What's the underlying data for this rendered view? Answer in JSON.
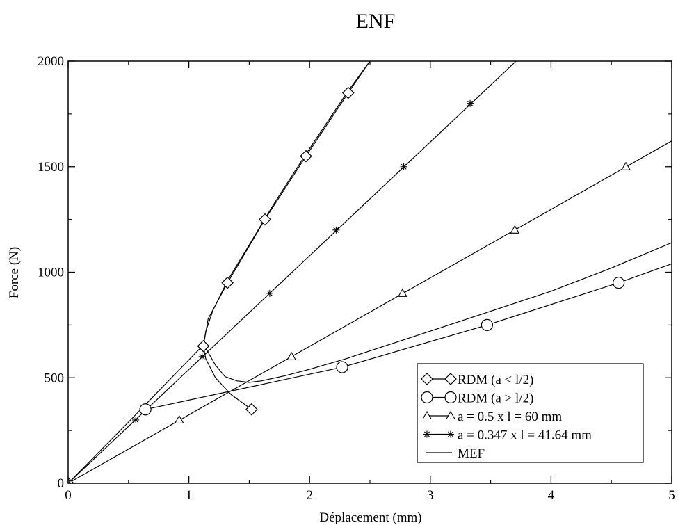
{
  "chart_data": {
    "type": "line",
    "title": "ENF",
    "xlabel": "Déplacement (mm)",
    "ylabel": "Force (N)",
    "xlim": [
      0,
      5
    ],
    "ylim": [
      0,
      2000
    ],
    "xticks": [
      "0",
      "1",
      "2",
      "3",
      "4",
      "5"
    ],
    "yticks": [
      "0",
      "500",
      "1000",
      "1500",
      "2000"
    ],
    "grid": false,
    "legend_position": "bottom-right",
    "series": [
      {
        "name": "RDM (a < l/2)",
        "marker": "diamond",
        "x": [
          0,
          1.12,
          1.32,
          1.63,
          1.97,
          2.32,
          1.52
        ],
        "y": [
          0,
          650,
          950,
          1250,
          1550,
          1850,
          350
        ],
        "x_line": [
          1.52,
          1.35,
          1.22,
          1.14,
          1.12,
          1.16,
          1.32,
          1.63,
          1.97,
          2.32,
          2.5
        ],
        "y_line": [
          350,
          420,
          500,
          590,
          650,
          780,
          950,
          1250,
          1550,
          1850,
          2000
        ]
      },
      {
        "name": "RDM (a > l/2)",
        "marker": "circle",
        "x": [
          0.64,
          2.27,
          3.47,
          4.56
        ],
        "y": [
          350,
          550,
          750,
          950
        ],
        "x_line": [
          0.64,
          2.27,
          3.47,
          4.56,
          5.0
        ],
        "y_line": [
          350,
          550,
          750,
          950,
          1040
        ]
      },
      {
        "name": "a = 0.5 x l = 60 mm",
        "marker": "triangle",
        "x": [
          0,
          0.92,
          1.85,
          2.77,
          3.7,
          4.62
        ],
        "y": [
          0,
          300,
          600,
          900,
          1200,
          1500
        ],
        "x_line": [
          0,
          5.0
        ],
        "y_line": [
          0,
          1622
        ]
      },
      {
        "name": "a = 0.347 x l = 41.64 mm",
        "marker": "star",
        "x": [
          0,
          0.56,
          1.11,
          1.67,
          2.22,
          2.78,
          3.33
        ],
        "y": [
          0,
          300,
          600,
          900,
          1200,
          1500,
          1800
        ],
        "x_line": [
          0,
          3.71
        ],
        "y_line": [
          0,
          2000
        ]
      },
      {
        "name": "MEF",
        "marker": "none",
        "x": [
          0,
          0.5,
          1.0,
          1.12,
          1.14,
          1.22,
          1.3,
          1.4,
          1.5,
          1.6,
          1.8,
          2.0,
          2.3,
          2.7,
          3.1,
          3.5,
          4.0,
          4.5,
          5.0
        ],
        "y": [
          0,
          290,
          585,
          655,
          640,
          560,
          505,
          485,
          478,
          485,
          510,
          540,
          590,
          665,
          740,
          815,
          910,
          1020,
          1140
        ],
        "x2": [
          1.12,
          1.14,
          1.2,
          1.32,
          1.5,
          1.7,
          1.97,
          2.32,
          2.5
        ],
        "y2": [
          650,
          720,
          820,
          960,
          1130,
          1320,
          1560,
          1860,
          2000
        ]
      }
    ]
  }
}
